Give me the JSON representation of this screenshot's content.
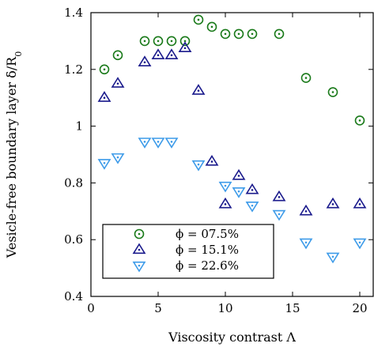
{
  "chart_data": {
    "type": "scatter",
    "xlabel": "Viscosity contrast Λ",
    "ylabel": "Vesicle-free boundary layer δ/R",
    "ylabel_sub": "0",
    "xlim": [
      0,
      21
    ],
    "ylim": [
      0.4,
      1.4
    ],
    "xticks": [
      0,
      5,
      10,
      15,
      20
    ],
    "yticks": [
      0.4,
      0.6,
      0.8,
      1.0,
      1.2,
      1.4
    ],
    "ytick_labels": [
      "0.4",
      "0.6",
      "0.8",
      "1",
      "1.2",
      "1.4"
    ],
    "grid": false,
    "legend_position": "bottom-left",
    "series": [
      {
        "name": "ϕ = 07.5%",
        "marker": "circle-dot",
        "color": "#1a7a1a",
        "points": [
          [
            1,
            1.2
          ],
          [
            2,
            1.25
          ],
          [
            4,
            1.3
          ],
          [
            5,
            1.3
          ],
          [
            6,
            1.3
          ],
          [
            7,
            1.3
          ],
          [
            8,
            1.375
          ],
          [
            9,
            1.35
          ],
          [
            10,
            1.325
          ],
          [
            11,
            1.325
          ],
          [
            12,
            1.325
          ],
          [
            14,
            1.325
          ],
          [
            16,
            1.17
          ],
          [
            18,
            1.12
          ],
          [
            20,
            1.02
          ]
        ]
      },
      {
        "name": "ϕ = 15.1%",
        "marker": "triangle-up-dot",
        "color": "#1a1a8c",
        "points": [
          [
            1,
            1.1
          ],
          [
            2,
            1.15
          ],
          [
            4,
            1.225
          ],
          [
            5,
            1.25
          ],
          [
            6,
            1.25
          ],
          [
            7,
            1.275
          ],
          [
            8,
            1.125
          ],
          [
            9,
            0.875
          ],
          [
            10,
            0.725
          ],
          [
            11,
            0.825
          ],
          [
            12,
            0.775
          ],
          [
            14,
            0.75
          ],
          [
            16,
            0.7
          ],
          [
            18,
            0.725
          ],
          [
            20,
            0.725
          ]
        ]
      },
      {
        "name": "ϕ = 22.6%",
        "marker": "triangle-down-dot",
        "color": "#3d9be9",
        "points": [
          [
            1,
            0.87
          ],
          [
            2,
            0.89
          ],
          [
            4,
            0.945
          ],
          [
            5,
            0.945
          ],
          [
            6,
            0.945
          ],
          [
            8,
            0.865
          ],
          [
            10,
            0.79
          ],
          [
            11,
            0.77
          ],
          [
            12,
            0.72
          ],
          [
            14,
            0.69
          ],
          [
            16,
            0.59
          ],
          [
            18,
            0.54
          ],
          [
            20,
            0.59
          ]
        ]
      }
    ]
  }
}
